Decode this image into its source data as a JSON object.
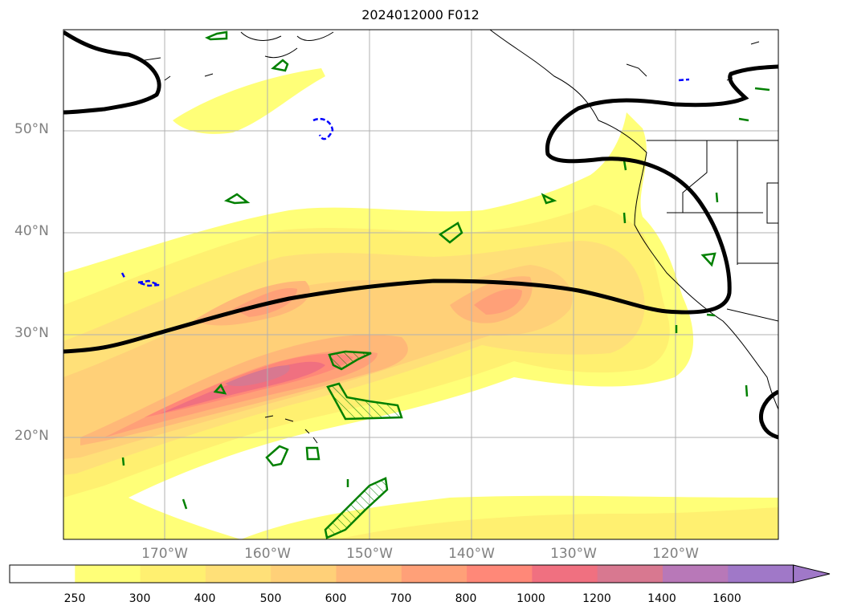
{
  "title": "2024012000 F012",
  "map": {
    "projection": "PlateCarree",
    "lon_range": [
      -180,
      -110
    ],
    "lat_range": [
      10,
      60
    ],
    "lat_labels": [
      "50°N",
      "40°N",
      "30°N",
      "20°N"
    ],
    "lon_labels": [
      "170°W",
      "160°W",
      "150°W",
      "140°W",
      "130°W",
      "120°W"
    ],
    "gridlines": true,
    "coastline_color": "#000000",
    "jet_axis_color": "#000000",
    "green_contour_color": "#008000",
    "blue_contour_color": "#0000ff"
  },
  "colorbar": {
    "ticks": [
      "250",
      "300",
      "400",
      "500",
      "600",
      "700",
      "800",
      "1000",
      "1200",
      "1400",
      "1600"
    ],
    "colors": [
      "#ffffff",
      "#ffff78",
      "#fff070",
      "#ffe078",
      "#ffd078",
      "#ffb878",
      "#ffa078",
      "#ff8878",
      "#f07080",
      "#d87890",
      "#b878b8",
      "#a078c8"
    ],
    "extend": "max"
  }
}
